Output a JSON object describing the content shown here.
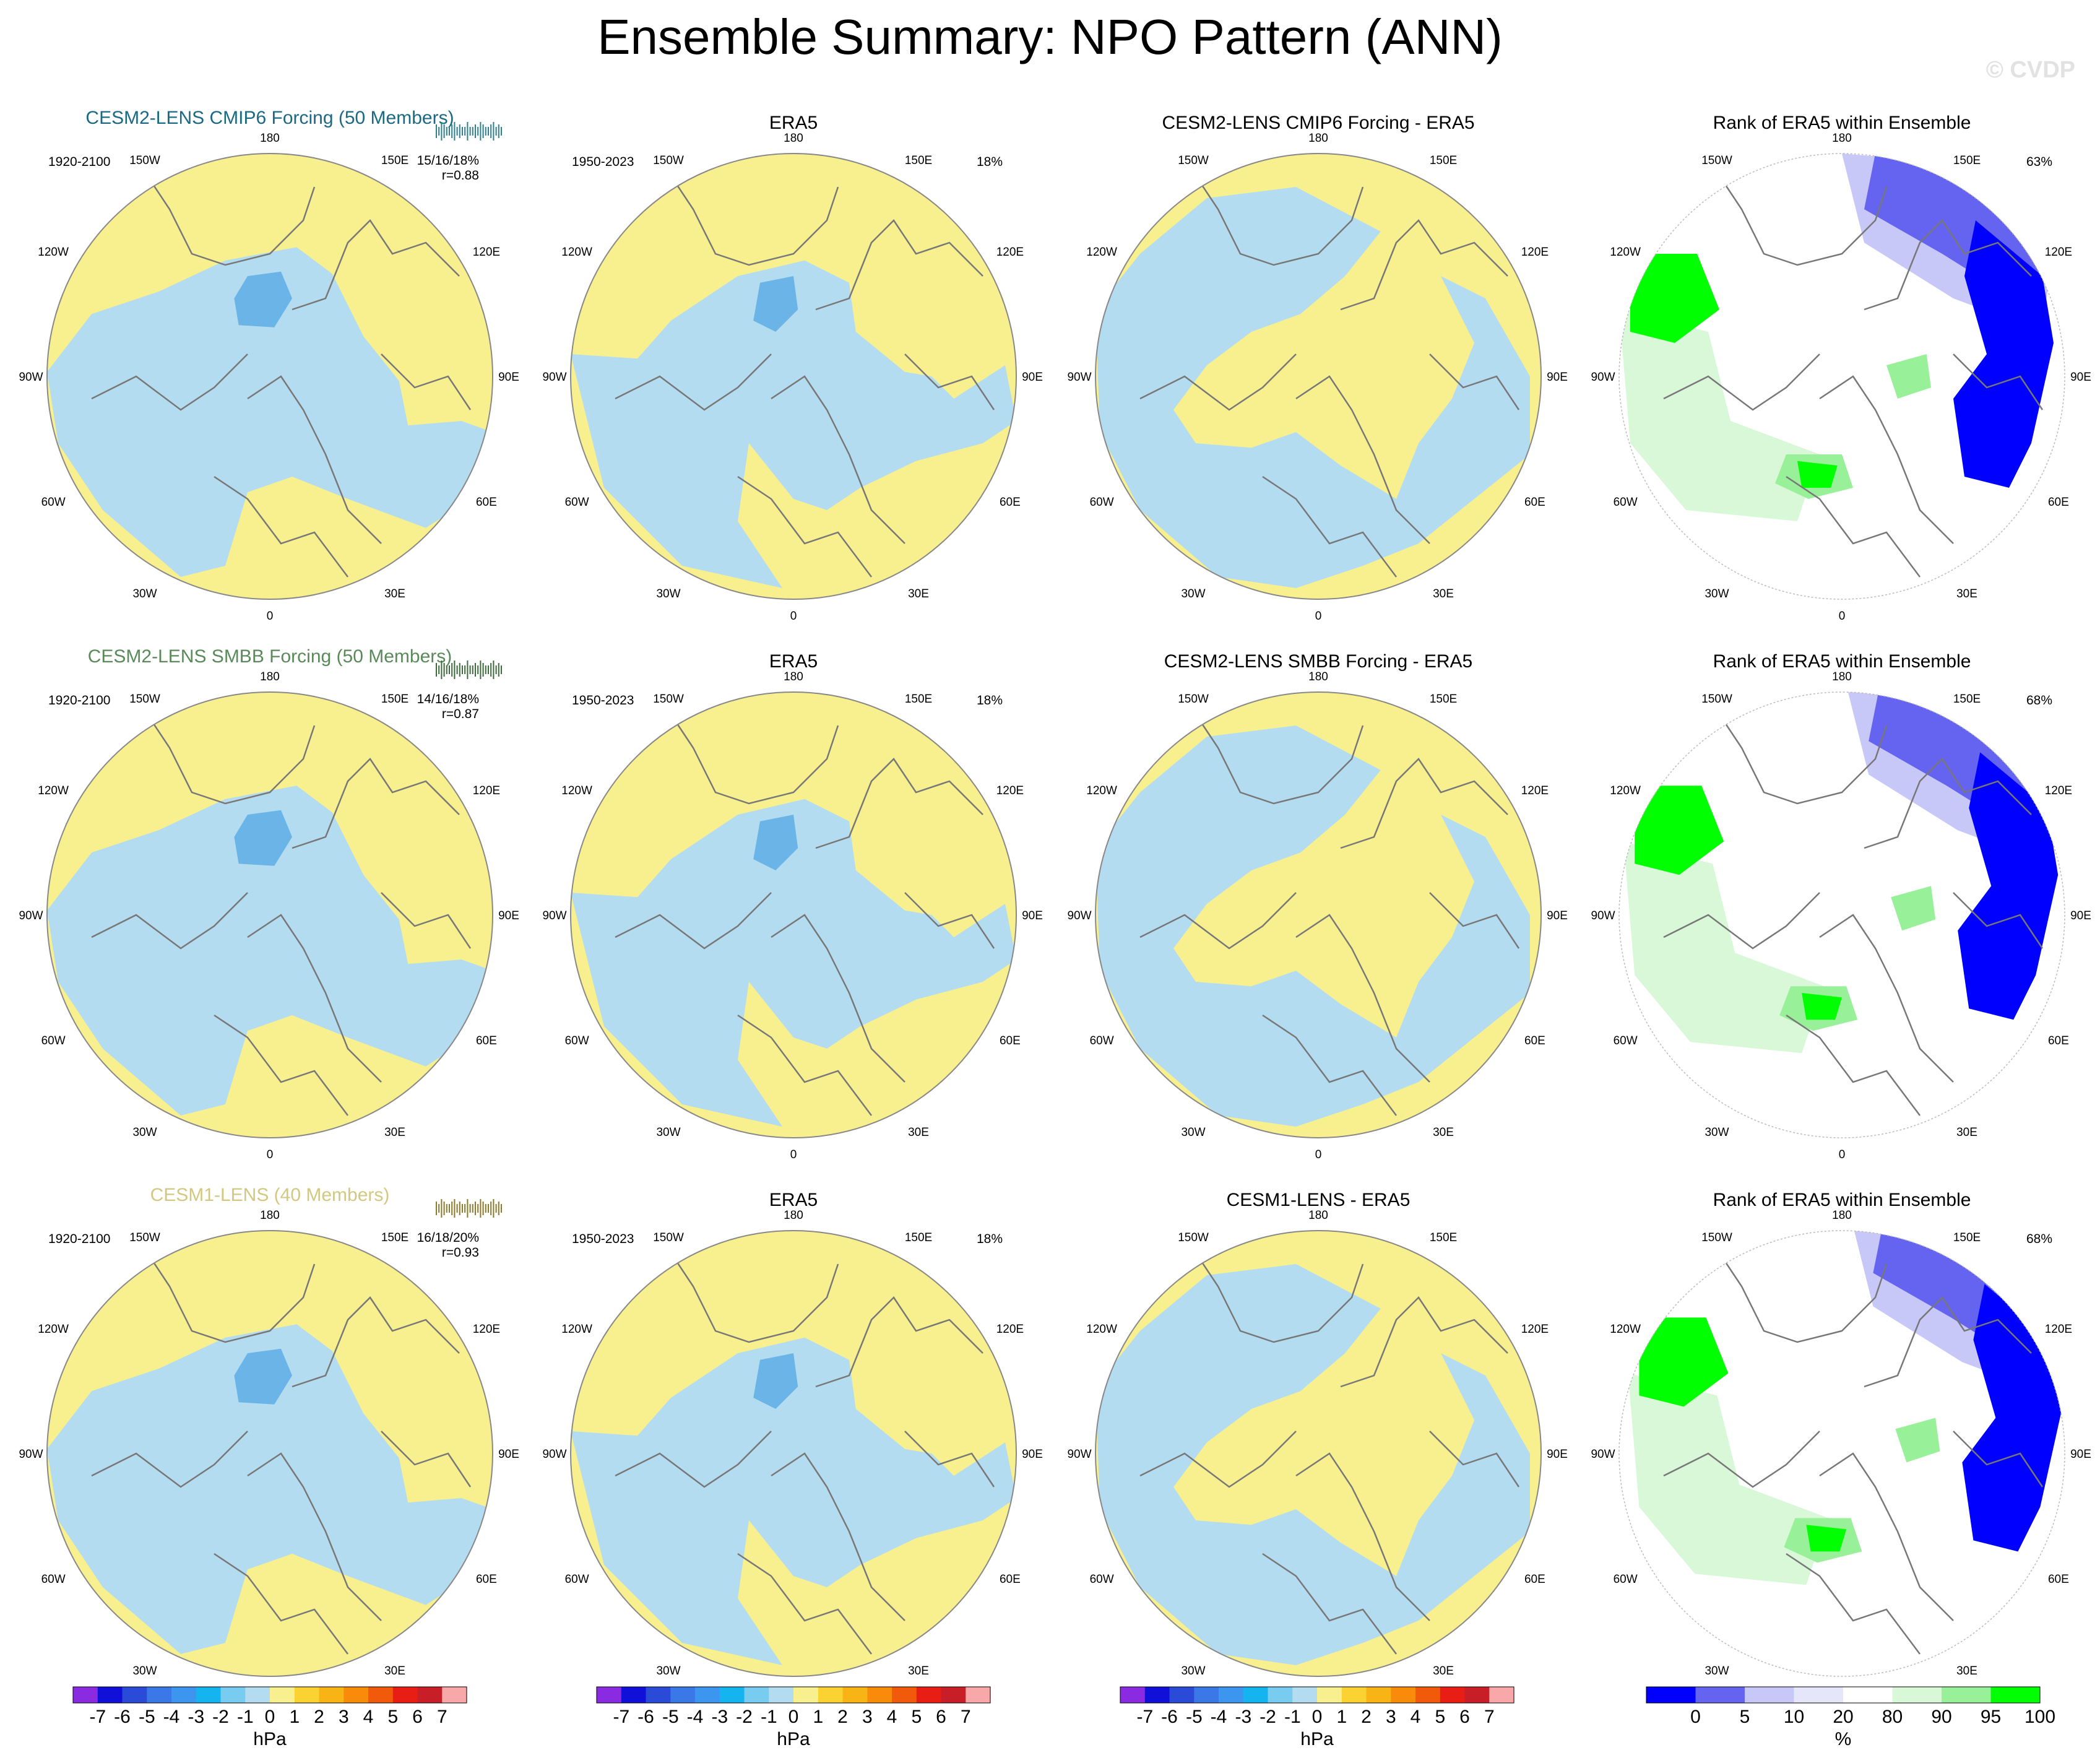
{
  "title": "Ensemble Summary: NPO Pattern (ANN)",
  "watermark": "© CVDP",
  "colors": {
    "positive": "#f8f08e",
    "negative": "#b4dcf0",
    "negative_strong": "#6ab4e8",
    "rank_white": "#ffffff",
    "rank_green_light": "#d8f8d8",
    "rank_green_mid": "#98f098",
    "rank_green_strong": "#00ff00",
    "rank_blue_light": "#c8c8f8",
    "rank_blue_mid": "#6464f0",
    "rank_blue_strong": "#0000ff",
    "coast": "#777777",
    "border": "#888888",
    "member_dash": "#2f7f8c"
  },
  "lon_labels": [
    "180",
    "150E",
    "120E",
    "90E",
    "60E",
    "30E",
    "0",
    "30W",
    "60W",
    "90W",
    "120W",
    "150W"
  ],
  "chart_data": [
    {
      "row": 1,
      "model_title": "CESM2-LENS CMIP6 Forcing (50 Members)",
      "model_title_color": "#1a6a86",
      "member_bar_color": "#2f7f8c",
      "model_years": "1920-2100",
      "model_stats": "15/16/18%",
      "model_r": "r=0.88",
      "obs_title": "ERA5",
      "obs_years": "1950-2023",
      "obs_pct": "18%",
      "diff_title": "CESM2-LENS CMIP6 Forcing - ERA5",
      "rank_title": "Rank of ERA5 within Ensemble",
      "rank_pct": "63%"
    },
    {
      "row": 2,
      "model_title": "CESM2-LENS SMBB Forcing (50 Members)",
      "model_title_color": "#5a8a5a",
      "member_bar_color": "#3c6a3c",
      "model_years": "1920-2100",
      "model_stats": "14/16/18%",
      "model_r": "r=0.87",
      "obs_title": "ERA5",
      "obs_years": "1950-2023",
      "obs_pct": "18%",
      "diff_title": "CESM2-LENS SMBB Forcing - ERA5",
      "rank_title": "Rank of ERA5 within Ensemble",
      "rank_pct": "68%"
    },
    {
      "row": 3,
      "model_title": "CESM1-LENS (40 Members)",
      "model_title_color": "#d2c882",
      "member_bar_color": "#8a7a2a",
      "model_years": "1920-2100",
      "model_stats": "16/18/20%",
      "model_r": "r=0.93",
      "obs_title": "ERA5",
      "obs_years": "1950-2023",
      "obs_pct": "18%",
      "diff_title": "CESM1-LENS - ERA5",
      "rank_title": "Rank of ERA5 within Ensemble",
      "rank_pct": "68%"
    }
  ],
  "colorbar_hpa": {
    "label": "hPa",
    "ticks": [
      "-7",
      "-6",
      "-5",
      "-4",
      "-3",
      "-2",
      "-1",
      "0",
      "1",
      "2",
      "3",
      "4",
      "5",
      "6",
      "7"
    ],
    "colors": [
      "#8a2be2",
      "#1010d8",
      "#2a4ad8",
      "#3a78e8",
      "#3c96f0",
      "#14b4f0",
      "#78ccf0",
      "#b4dcf0",
      "#f8f08e",
      "#fad232",
      "#f8b414",
      "#f88c0a",
      "#f05a0a",
      "#e81e14",
      "#c81e28",
      "#f8a8a8"
    ]
  },
  "colorbar_rank": {
    "label": "%",
    "ticks": [
      "0",
      "5",
      "10",
      "20",
      "80",
      "90",
      "95",
      "100"
    ],
    "colors": [
      "#0000ff",
      "#6464f0",
      "#c8c8f8",
      "#e6e6fa",
      "#ffffff",
      "#d8f8d8",
      "#98f098",
      "#00ff00"
    ]
  }
}
